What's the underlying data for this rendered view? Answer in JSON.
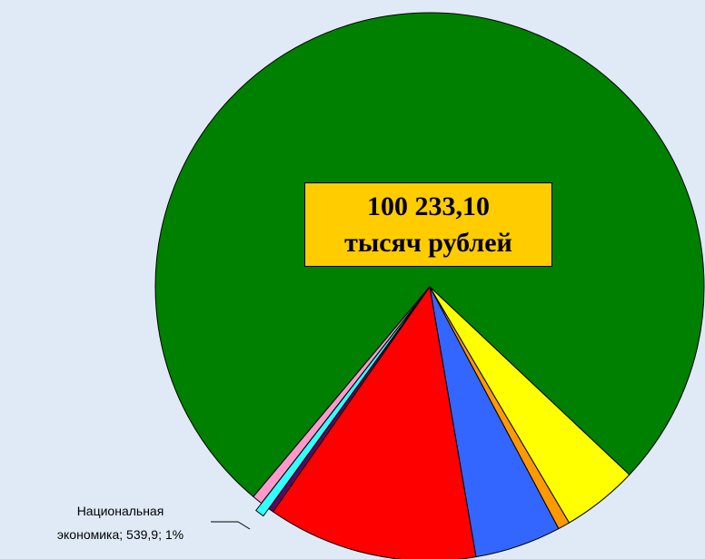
{
  "chart_data": {
    "type": "pie",
    "center_label": [
      "100 233,10",
      "тысяч рублей"
    ],
    "categories": [
      null,
      null,
      null,
      null,
      null,
      null,
      "Национальная экономика",
      null
    ],
    "values": [
      76093.2,
      4500,
      700,
      5100,
      12400,
      300,
      539.9,
      600
    ],
    "data_labels": [
      null,
      null,
      null,
      null,
      null,
      null,
      "Национальная\nэкономика; 539,9; 1%",
      null
    ],
    "colors": [
      "#008000",
      "#ffff00",
      "#ff9900",
      "#3366ff",
      "#ff0000",
      "#660066",
      "#33ffff",
      "#ff99cc"
    ],
    "exploded": [
      6
    ]
  }
}
